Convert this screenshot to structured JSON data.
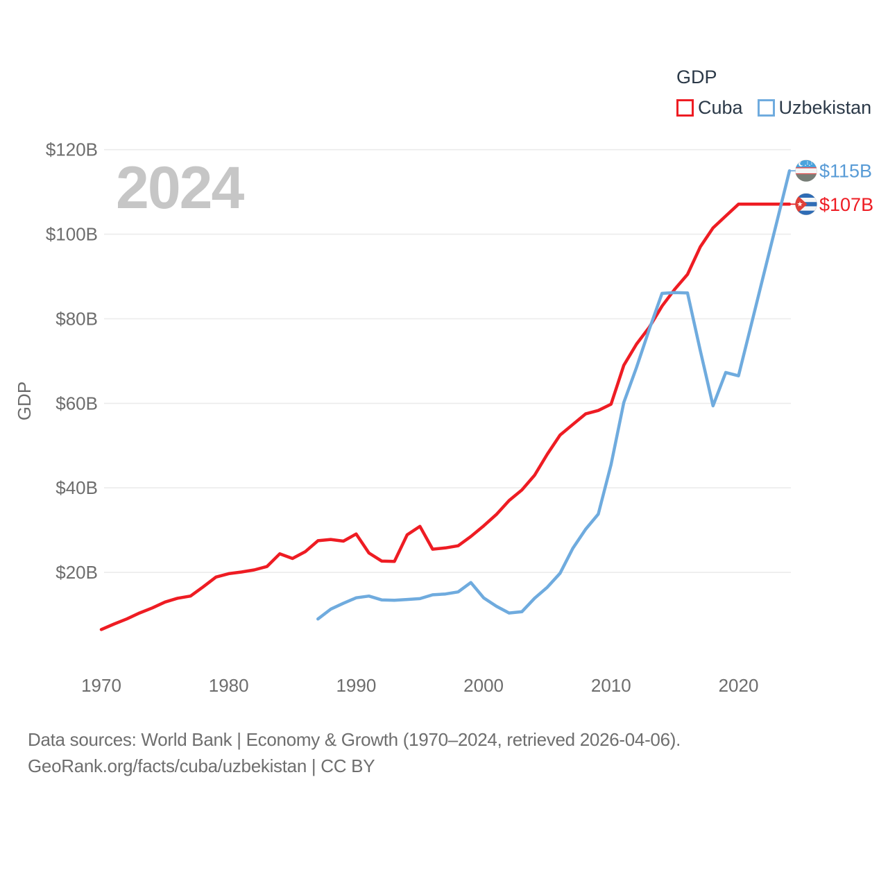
{
  "legend": {
    "title": "GDP"
  },
  "colors": {
    "background": "#ffffff",
    "gridline": "#ebebeb",
    "tick_text": "#6d6d6d",
    "legend_text": "#2b3948",
    "footer_text": "#6e6e6e",
    "watermark": "#c6c6c6"
  },
  "footer": {
    "line1": "Data sources: World Bank | Economy & Growth (1970–2024, retrieved 2026-04-06).",
    "line2": "GeoRank.org/facts/cuba/uzbekistan | CC BY"
  },
  "chart_data": {
    "type": "line",
    "title": "GDP",
    "watermark_year": "2024",
    "ylabel": "GDP",
    "xlabel": "",
    "grid": true,
    "legend_position": "top-right",
    "xlim": [
      1967.6,
      2024
    ],
    "ylim": [
      0,
      124
    ],
    "y_axis": {
      "label": "GDP",
      "ticks": [
        {
          "value": 20,
          "label": "$20B"
        },
        {
          "value": 40,
          "label": "$40B"
        },
        {
          "value": 60,
          "label": "$60B"
        },
        {
          "value": 80,
          "label": "$80B"
        },
        {
          "value": 100,
          "label": "$100B"
        },
        {
          "value": 120,
          "label": "$120B"
        }
      ]
    },
    "x_axis": {
      "ticks": [
        {
          "value": 1970,
          "label": "1970"
        },
        {
          "value": 1980,
          "label": "1980"
        },
        {
          "value": 1990,
          "label": "1990"
        },
        {
          "value": 2000,
          "label": "2000"
        },
        {
          "value": 2010,
          "label": "2010"
        },
        {
          "value": 2020,
          "label": "2020"
        }
      ]
    },
    "series": [
      {
        "name": "Cuba",
        "color": "#ee1c23",
        "label_color": "#ee1c23",
        "flag": "cuba-flag-icon",
        "start_year": 1970,
        "end_label": "$107B",
        "values": [
          6.5,
          7.8,
          9,
          10.4,
          11.6,
          13,
          13.9,
          14.4,
          16.6,
          18.9,
          19.7,
          20.1,
          20.6,
          21.4,
          24.4,
          23.3,
          24.9,
          27.5,
          27.8,
          27.4,
          29.1,
          24.6,
          22.7,
          22.6,
          28.9,
          30.9,
          25.5,
          25.8,
          26.3,
          28.5,
          31,
          33.7,
          37,
          39.5,
          43,
          48,
          52.5,
          55,
          57.5,
          58.3,
          59.8,
          69,
          74,
          78,
          83,
          87,
          90.5,
          97,
          101.5,
          104.3,
          107.1,
          107.1,
          107.1,
          107.1,
          107.1
        ]
      },
      {
        "name": "Uzbekistan",
        "color": "#6fabde",
        "label_color": "#589bd6",
        "flag": "uzbekistan-flag-icon",
        "start_year": 1987,
        "end_label": "$115B",
        "values": [
          9,
          11.3,
          12.7,
          14,
          14.4,
          13.5,
          13.4,
          13.6,
          13.8,
          14.7,
          14.9,
          15.4,
          17.6,
          14,
          12,
          10.4,
          10.7,
          13.9,
          16.5,
          19.8,
          25.7,
          30.2,
          33.8,
          45.5,
          60.2,
          68.5,
          77.5,
          86,
          86.2,
          86.1,
          72.5,
          59.4,
          67.3,
          66.5,
          78.6,
          90.7,
          102.8,
          115
        ]
      }
    ]
  }
}
